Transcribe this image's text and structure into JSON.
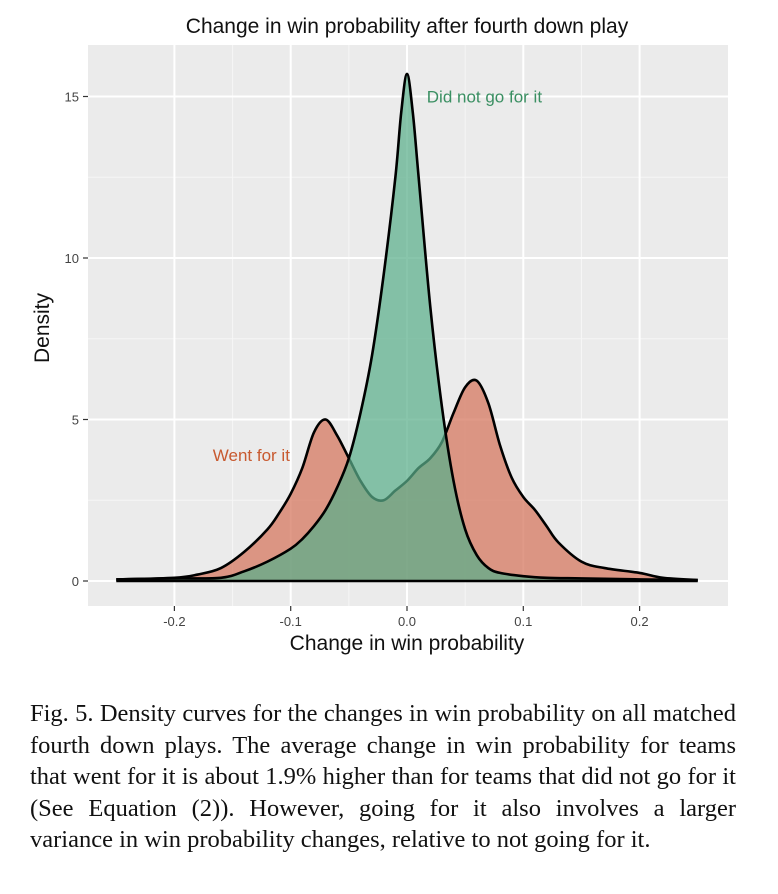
{
  "figure": {
    "caption": "Fig. 5. Density curves for the changes in win probability on all matched fourth down plays. The average change in win probability for teams that went for it is about 1.9% higher than for teams that did not go for it (See Equation (2)). However, going for it also involves a larger variance in win probability changes, relative to not going for it."
  },
  "chart_data": {
    "type": "area",
    "title": "Change in win probability after fourth down play",
    "xlabel": "Change in win probability",
    "ylabel": "Density",
    "xlim": [
      -0.25,
      0.25
    ],
    "ylim": [
      0,
      16
    ],
    "x_ticks": [
      -0.2,
      -0.1,
      0.0,
      0.1,
      0.2
    ],
    "x_tick_labels": [
      "-0.2",
      "-0.1",
      "0.0",
      "0.1",
      "0.2"
    ],
    "y_ticks": [
      0,
      5,
      10,
      15
    ],
    "y_tick_labels": [
      "0",
      "5",
      "10",
      "15"
    ],
    "grid": true,
    "legend": "none",
    "series": [
      {
        "name": "Went for it",
        "color": "#d4735a",
        "x": [
          -0.25,
          -0.2,
          -0.18,
          -0.16,
          -0.14,
          -0.12,
          -0.11,
          -0.1,
          -0.09,
          -0.08,
          -0.07,
          -0.06,
          -0.05,
          -0.04,
          -0.03,
          -0.02,
          -0.01,
          0.0,
          0.01,
          0.02,
          0.03,
          0.04,
          0.05,
          0.06,
          0.07,
          0.08,
          0.09,
          0.1,
          0.11,
          0.12,
          0.13,
          0.15,
          0.17,
          0.2,
          0.22,
          0.25
        ],
        "values": [
          0.05,
          0.1,
          0.2,
          0.4,
          0.9,
          1.6,
          2.1,
          2.7,
          3.5,
          4.6,
          5.0,
          4.5,
          3.8,
          3.1,
          2.6,
          2.5,
          2.8,
          3.1,
          3.5,
          3.8,
          4.3,
          5.2,
          6.0,
          6.2,
          5.5,
          4.2,
          3.2,
          2.6,
          2.2,
          1.7,
          1.2,
          0.6,
          0.4,
          0.25,
          0.1,
          0.03
        ]
      },
      {
        "name": "Did not go for it",
        "color": "#5aae8a",
        "x": [
          -0.25,
          -0.2,
          -0.16,
          -0.14,
          -0.12,
          -0.1,
          -0.09,
          -0.08,
          -0.07,
          -0.06,
          -0.05,
          -0.04,
          -0.03,
          -0.02,
          -0.01,
          -0.005,
          0.0,
          0.005,
          0.01,
          0.02,
          0.03,
          0.04,
          0.05,
          0.06,
          0.07,
          0.08,
          0.1,
          0.12,
          0.15,
          0.2,
          0.25
        ],
        "values": [
          0.05,
          0.08,
          0.1,
          0.3,
          0.6,
          1.0,
          1.3,
          1.7,
          2.2,
          2.9,
          3.8,
          5.2,
          7.0,
          9.5,
          12.5,
          14.5,
          15.7,
          14.5,
          12.5,
          8.5,
          5.4,
          3.1,
          1.6,
          0.8,
          0.4,
          0.25,
          0.15,
          0.1,
          0.08,
          0.05,
          0.03
        ]
      }
    ],
    "annotations": [
      {
        "text": "Did not go for it",
        "x": 0.017,
        "y": 15.0,
        "color": "#3a8f62"
      },
      {
        "text": "Went for it",
        "x": -0.167,
        "y": 3.9,
        "color": "#c85a30"
      }
    ]
  }
}
